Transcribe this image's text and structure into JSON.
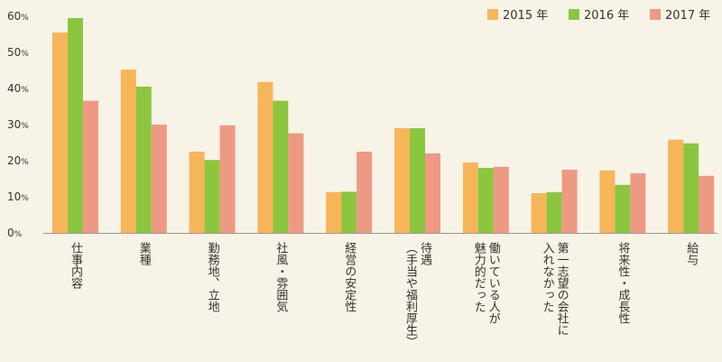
{
  "colors": {
    "s2015": "#f7b55a",
    "s2016": "#8cc63f",
    "s2017": "#ee9a82",
    "axis": "#999999"
  },
  "chart_data": {
    "type": "bar",
    "title": "",
    "ylim": [
      0,
      60
    ],
    "yticks": [
      0,
      10,
      20,
      30,
      40,
      50,
      60
    ],
    "ytick_unit": "%",
    "grid": false,
    "legend_position": "top-right",
    "categories": [
      [
        "仕事内容"
      ],
      [
        "業種"
      ],
      [
        "勤務地、立地"
      ],
      [
        "社風・雰囲気"
      ],
      [
        "経営の安定性"
      ],
      [
        "待遇",
        "（手当や福利厚生）"
      ],
      [
        "働いている人が",
        "魅力的だった"
      ],
      [
        "第一志望の会社に",
        "入れなかった"
      ],
      [
        "将来性・成長性"
      ],
      [
        "給与"
      ]
    ],
    "series": [
      {
        "name": "2015 年",
        "color": "#f7b55a",
        "values": [
          55.5,
          45.2,
          22.5,
          41.8,
          11.3,
          29.0,
          19.5,
          11.0,
          17.3,
          25.8
        ]
      },
      {
        "name": "2016 年",
        "color": "#8cc63f",
        "values": [
          59.5,
          40.5,
          20.2,
          36.6,
          11.4,
          29.0,
          18.0,
          11.3,
          13.3,
          24.8
        ]
      },
      {
        "name": "2017 年",
        "color": "#ee9a82",
        "values": [
          36.6,
          30.0,
          29.8,
          27.6,
          22.5,
          22.0,
          18.3,
          17.5,
          16.5,
          15.8
        ]
      }
    ]
  }
}
